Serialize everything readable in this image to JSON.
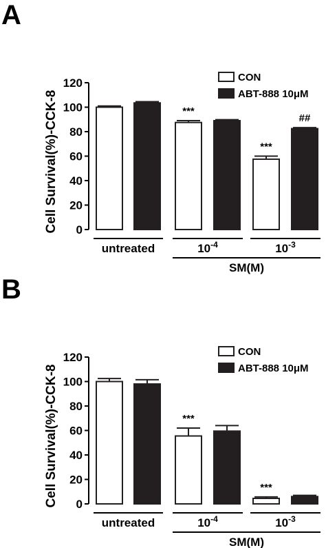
{
  "chart_data": [
    {
      "type": "bar",
      "panel_label": "A",
      "ylabel": "Cell Survival(%)-CCK-8",
      "xlabel": "SM(M)",
      "ylim": [
        0,
        120
      ],
      "yticks": [
        "0",
        "20",
        "40",
        "60",
        "80",
        "100",
        "120"
      ],
      "groups": [
        {
          "label": "untreated",
          "base": "",
          "exp": ""
        },
        {
          "label": "",
          "base": "10",
          "exp": "-4"
        },
        {
          "label": "",
          "base": "10",
          "exp": "-3"
        }
      ],
      "legend": [
        "CON",
        "ABT-888 10μM"
      ],
      "series": [
        {
          "name": "CON",
          "color": "#ffffff",
          "values": [
            100,
            87.5,
            57.5
          ],
          "errors": [
            1,
            1.5,
            2.5
          ],
          "annotations": [
            "",
            "***",
            "***"
          ]
        },
        {
          "name": "ABT-888 10μM",
          "color": "#231f20",
          "values": [
            103.5,
            89,
            82.5
          ],
          "errors": [
            1,
            0.8,
            0.8
          ],
          "annotations": [
            "",
            "",
            "##"
          ]
        }
      ]
    },
    {
      "type": "bar",
      "panel_label": "B",
      "ylabel": "Cell Survival(%)-CCK-8",
      "xlabel": "SM(M)",
      "ylim": [
        0,
        120
      ],
      "yticks": [
        "0",
        "20",
        "40",
        "60",
        "80",
        "100",
        "120"
      ],
      "groups": [
        {
          "label": "untreated",
          "base": "",
          "exp": ""
        },
        {
          "label": "",
          "base": "10",
          "exp": "-4"
        },
        {
          "label": "",
          "base": "10",
          "exp": "-3"
        }
      ],
      "legend": [
        "CON",
        "ABT-888 10μM"
      ],
      "series": [
        {
          "name": "CON",
          "color": "#ffffff",
          "values": [
            100,
            55.5,
            4.5
          ],
          "errors": [
            2.5,
            6.5,
            1.2
          ],
          "annotations": [
            "",
            "***",
            "***"
          ]
        },
        {
          "name": "ABT-888 10μM",
          "color": "#231f20",
          "values": [
            98,
            59.5,
            6
          ],
          "errors": [
            3.5,
            4.5,
            1
          ],
          "annotations": [
            "",
            "",
            ""
          ]
        }
      ]
    }
  ]
}
